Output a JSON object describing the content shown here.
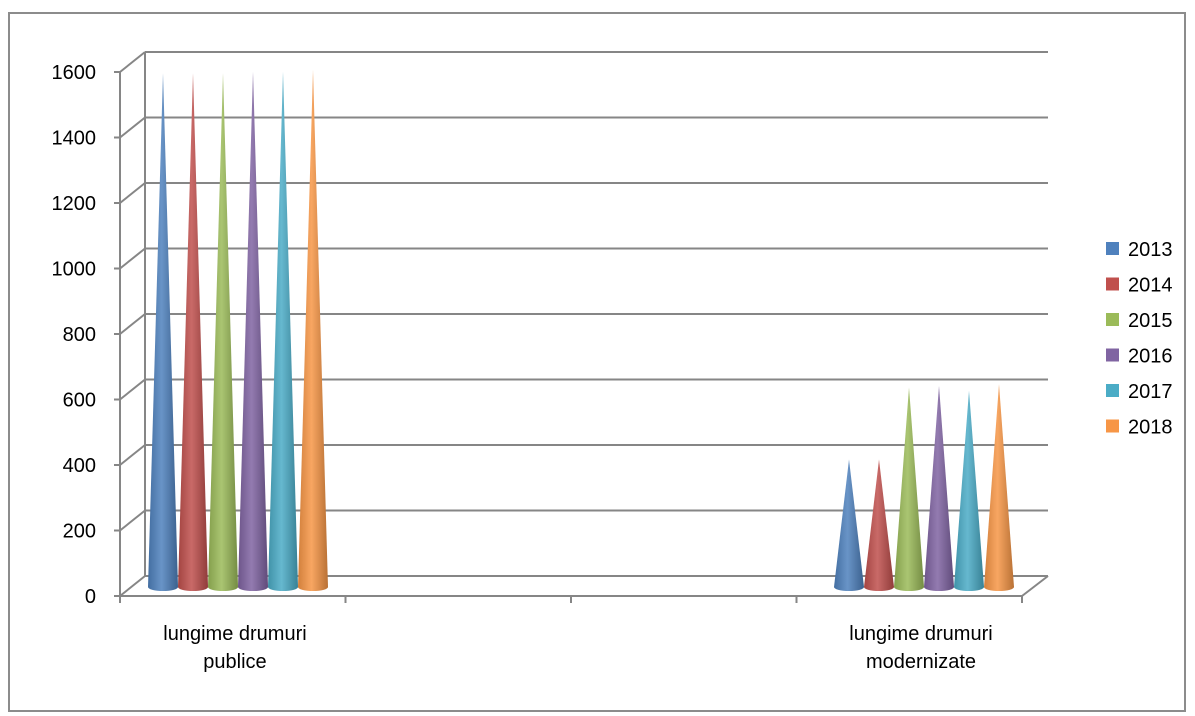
{
  "chart_data": {
    "type": "bar",
    "style": "3d-cone",
    "title": "",
    "xlabel": "",
    "ylabel": "",
    "ylim": [
      0,
      1600
    ],
    "y_ticks": [
      "0",
      "200",
      "400",
      "600",
      "800",
      "1000",
      "1200",
      "1400",
      "1600"
    ],
    "grid": true,
    "legend_position": "right",
    "categories": [
      [
        "lungime drumuri",
        "publice"
      ],
      [
        "lungime drumuri",
        "modernizate"
      ]
    ],
    "series": [
      {
        "name": "2013",
        "color": "#4f81bd",
        "values": [
          1560,
          380
        ]
      },
      {
        "name": "2014",
        "color": "#c0504d",
        "values": [
          1560,
          380
        ]
      },
      {
        "name": "2015",
        "color": "#9bbb59",
        "values": [
          1560,
          600
        ]
      },
      {
        "name": "2016",
        "color": "#8064a2",
        "values": [
          1565,
          605
        ]
      },
      {
        "name": "2017",
        "color": "#4bacc6",
        "values": [
          1565,
          590
        ]
      },
      {
        "name": "2018",
        "color": "#f79646",
        "values": [
          1570,
          610
        ]
      }
    ]
  }
}
